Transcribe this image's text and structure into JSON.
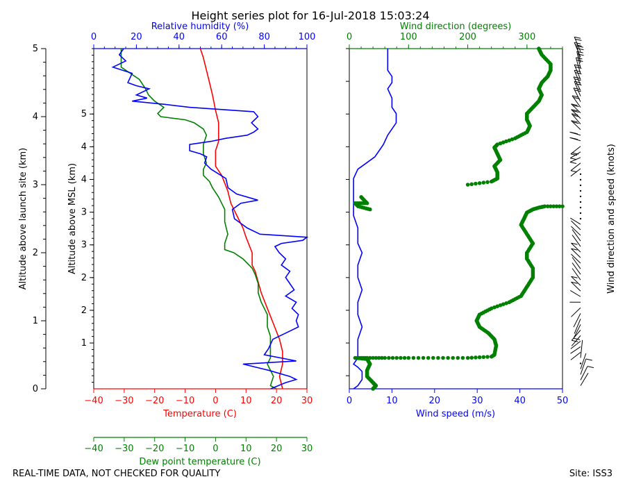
{
  "title": "Height series plot for 16-Jul-2018 15:03:24",
  "footer_left": "REAL-TIME DATA, NOT CHECKED FOR QUALITY",
  "footer_right": "Site: ISS3",
  "colors": {
    "red": "#ff0000",
    "green": "#008000",
    "blue": "#0000ff",
    "black": "#000000"
  },
  "chart_data": [
    {
      "type": "line",
      "panel": "thermo",
      "ylabel_left": "Altitude above launch site (km)",
      "ylabel_inner": "Altitude above MSL (km)",
      "y_left": {
        "range": [
          0,
          5
        ],
        "ticks": [
          "0",
          "1",
          "2",
          "3",
          "4",
          "5"
        ]
      },
      "y_msl": {
        "range": [
          0.3,
          5.5
        ],
        "ticks": [
          "1",
          "2",
          "2",
          "3",
          "3",
          "4",
          "4",
          "5"
        ],
        "tick_values": [
          1,
          1.5,
          2,
          2.5,
          3,
          3.5,
          4,
          4.5
        ]
      },
      "x_top": {
        "label": "Relative humidity (%)",
        "range": [
          0,
          100
        ],
        "ticks": [
          "0",
          "20",
          "40",
          "60",
          "80",
          "100"
        ],
        "color": "#0000ff"
      },
      "x_bottom": {
        "label": "Temperature (C)",
        "range": [
          -40,
          30
        ],
        "ticks": [
          "−40",
          "−30",
          "−20",
          "−10",
          "0",
          "10",
          "20",
          "30"
        ],
        "color": "#ff0000"
      },
      "x_bottom2": {
        "label": "Dew point temperature (C)",
        "range": [
          -40,
          30
        ],
        "ticks": [
          "−40",
          "−30",
          "−20",
          "−10",
          "0",
          "10",
          "20",
          "30"
        ],
        "color": "#008000"
      },
      "series": [
        {
          "name": "Temperature",
          "axis": "temp",
          "color": "#ff0000",
          "points": [
            [
              22,
              0
            ],
            [
              21,
              0.2
            ],
            [
              22,
              0.4
            ],
            [
              22,
              0.6
            ],
            [
              21,
              0.8
            ],
            [
              19,
              1.05
            ],
            [
              17,
              1.3
            ],
            [
              15,
              1.55
            ],
            [
              13,
              1.9
            ],
            [
              12,
              2.0
            ],
            [
              12,
              2.2
            ],
            [
              10,
              2.45
            ],
            [
              9,
              2.6
            ],
            [
              7,
              2.8
            ],
            [
              5,
              3.0
            ],
            [
              4,
              3.2
            ],
            [
              2,
              3.45
            ],
            [
              0,
              3.6
            ],
            [
              0,
              3.85
            ],
            [
              1,
              4.0
            ],
            [
              1,
              4.3
            ],
            [
              0,
              4.5
            ],
            [
              -1,
              4.75
            ],
            [
              -2,
              4.95
            ],
            [
              -3,
              5.15
            ],
            [
              -4,
              5.35
            ],
            [
              -5,
              5.5
            ]
          ]
        },
        {
          "name": "Dew point",
          "axis": "temp",
          "color": "#008000",
          "points": [
            [
              20,
              0
            ],
            [
              18,
              0.05
            ],
            [
              19,
              0.2
            ],
            [
              17,
              0.4
            ],
            [
              18,
              0.5
            ],
            [
              18,
              0.7
            ],
            [
              18,
              0.85
            ],
            [
              17,
              1.0
            ],
            [
              17,
              1.2
            ],
            [
              15,
              1.4
            ],
            [
              14,
              1.55
            ],
            [
              14,
              1.7
            ],
            [
              13,
              1.85
            ],
            [
              12,
              1.95
            ],
            [
              11,
              2.0
            ],
            [
              9,
              2.1
            ],
            [
              6,
              2.2
            ],
            [
              3,
              2.25
            ],
            [
              3,
              2.35
            ],
            [
              4,
              2.5
            ],
            [
              3,
              2.7
            ],
            [
              3,
              2.9
            ],
            [
              2,
              3.0
            ],
            [
              1,
              3.1
            ],
            [
              -1,
              3.25
            ],
            [
              -2,
              3.35
            ],
            [
              -4,
              3.45
            ],
            [
              -4,
              3.55
            ],
            [
              -3,
              3.65
            ],
            [
              -4,
              3.8
            ],
            [
              -4,
              3.95
            ],
            [
              -3,
              4.1
            ],
            [
              -4,
              4.2
            ],
            [
              -7,
              4.3
            ],
            [
              -10,
              4.35
            ],
            [
              -18,
              4.4
            ],
            [
              -19,
              4.45
            ],
            [
              -17,
              4.55
            ],
            [
              -20,
              4.65
            ],
            [
              -22,
              4.75
            ],
            [
              -23,
              4.85
            ],
            [
              -25,
              5.0
            ],
            [
              -28,
              5.1
            ],
            [
              -31,
              5.2
            ],
            [
              -31,
              5.35
            ],
            [
              -31,
              5.5
            ]
          ]
        },
        {
          "name": "Relative humidity",
          "axis": "rh",
          "color": "#0000ff",
          "points": [
            [
              83,
              0
            ],
            [
              90,
              0.1
            ],
            [
              95,
              0.15
            ],
            [
              92,
              0.2
            ],
            [
              82,
              0.3
            ],
            [
              70,
              0.4
            ],
            [
              95,
              0.45
            ],
            [
              80,
              0.55
            ],
            [
              82,
              0.65
            ],
            [
              84,
              0.8
            ],
            [
              90,
              0.9
            ],
            [
              96,
              1.0
            ],
            [
              95,
              1.1
            ],
            [
              96,
              1.2
            ],
            [
              93,
              1.3
            ],
            [
              95,
              1.4
            ],
            [
              90,
              1.5
            ],
            [
              94,
              1.6
            ],
            [
              92,
              1.7
            ],
            [
              90,
              1.8
            ],
            [
              92,
              1.9
            ],
            [
              88,
              2.0
            ],
            [
              90,
              2.1
            ],
            [
              87,
              2.2
            ],
            [
              85,
              2.3
            ],
            [
              88,
              2.35
            ],
            [
              98,
              2.4
            ],
            [
              100,
              2.45
            ],
            [
              78,
              2.5
            ],
            [
              72,
              2.6
            ],
            [
              66,
              2.75
            ],
            [
              65,
              2.9
            ],
            [
              69,
              3.0
            ],
            [
              77,
              3.05
            ],
            [
              67,
              3.15
            ],
            [
              63,
              3.25
            ],
            [
              62,
              3.4
            ],
            [
              55,
              3.55
            ],
            [
              52,
              3.65
            ],
            [
              53,
              3.75
            ],
            [
              50,
              3.8
            ],
            [
              45,
              3.85
            ],
            [
              45,
              3.95
            ],
            [
              55,
              4.0
            ],
            [
              62,
              4.05
            ],
            [
              72,
              4.1
            ],
            [
              75,
              4.15
            ],
            [
              77,
              4.2
            ],
            [
              74,
              4.3
            ],
            [
              77,
              4.4
            ],
            [
              75,
              4.48
            ],
            [
              45,
              4.55
            ],
            [
              33,
              4.6
            ],
            [
              18,
              4.65
            ],
            [
              25,
              4.7
            ],
            [
              20,
              4.75
            ],
            [
              26,
              4.85
            ],
            [
              20,
              4.9
            ],
            [
              16,
              4.95
            ],
            [
              18,
              5.1
            ],
            [
              9,
              5.2
            ],
            [
              15,
              5.3
            ],
            [
              12,
              5.4
            ],
            [
              14,
              5.5
            ]
          ]
        }
      ]
    },
    {
      "type": "scatter",
      "panel": "wind",
      "x_top": {
        "label": "Wind direction (degrees)",
        "range": [
          0,
          360
        ],
        "ticks": [
          "0",
          "100",
          "200",
          "300"
        ],
        "color": "#008000"
      },
      "x_bottom": {
        "label": "Wind speed (m/s)",
        "range": [
          0,
          50
        ],
        "ticks": [
          "0",
          "10",
          "20",
          "30",
          "40",
          "50"
        ],
        "color": "#0000ff"
      },
      "ylabel_right": "Wind direction and speed (knots)",
      "series": [
        {
          "name": "Wind speed",
          "color": "#0000ff",
          "style": "line",
          "points": [
            [
              1,
              0
            ],
            [
              2,
              0.05
            ],
            [
              3,
              0.15
            ],
            [
              3,
              0.28
            ],
            [
              2,
              0.35
            ],
            [
              1,
              0.4
            ],
            [
              2,
              0.5
            ],
            [
              2,
              0.65
            ],
            [
              2,
              0.8
            ],
            [
              3,
              1.0
            ],
            [
              2,
              1.2
            ],
            [
              2,
              1.4
            ],
            [
              3,
              1.6
            ],
            [
              2,
              1.8
            ],
            [
              2,
              2.0
            ],
            [
              3,
              2.2
            ],
            [
              2,
              2.35
            ],
            [
              2,
              2.6
            ],
            [
              1,
              2.8
            ],
            [
              1,
              3.0
            ],
            [
              1,
              3.2
            ],
            [
              1,
              3.4
            ],
            [
              2,
              3.55
            ],
            [
              4,
              3.65
            ],
            [
              6,
              3.75
            ],
            [
              7,
              3.85
            ],
            [
              8,
              3.95
            ],
            [
              9,
              4.1
            ],
            [
              10,
              4.2
            ],
            [
              11,
              4.3
            ],
            [
              11,
              4.45
            ],
            [
              10,
              4.55
            ],
            [
              10,
              4.7
            ],
            [
              9,
              4.85
            ],
            [
              10,
              4.95
            ],
            [
              10,
              5.05
            ],
            [
              9,
              5.15
            ],
            [
              9,
              5.3
            ],
            [
              9,
              5.45
            ],
            [
              9,
              5.5
            ]
          ]
        },
        {
          "name": "Wind direction",
          "color": "#008000",
          "style": "dots",
          "points": [
            [
              40,
              0
            ],
            [
              45,
              0.05
            ],
            [
              40,
              0.1
            ],
            [
              30,
              0.2
            ],
            [
              30,
              0.3
            ],
            [
              35,
              0.4
            ],
            [
              30,
              0.48
            ],
            [
              10,
              0.5
            ],
            [
              30,
              0.5
            ],
            [
              60,
              0.5
            ],
            [
              100,
              0.5
            ],
            [
              150,
              0.5
            ],
            [
              200,
              0.5
            ],
            [
              240,
              0.52
            ],
            [
              245,
              0.55
            ],
            [
              248,
              0.7
            ],
            [
              245,
              0.8
            ],
            [
              235,
              0.9
            ],
            [
              220,
              1.0
            ],
            [
              215,
              1.1
            ],
            [
              220,
              1.2
            ],
            [
              240,
              1.3
            ],
            [
              270,
              1.4
            ],
            [
              290,
              1.5
            ],
            [
              300,
              1.65
            ],
            [
              310,
              1.8
            ],
            [
              310,
              1.95
            ],
            [
              300,
              2.1
            ],
            [
              300,
              2.2
            ],
            [
              310,
              2.35
            ],
            [
              300,
              2.5
            ],
            [
              290,
              2.65
            ],
            [
              295,
              2.75
            ],
            [
              300,
              2.85
            ],
            [
              310,
              2.9
            ],
            [
              320,
              2.93
            ],
            [
              330,
              2.95
            ],
            [
              360,
              2.95
            ],
            [
              35,
              2.9
            ],
            [
              15,
              2.95
            ],
            [
              10,
              3.0
            ],
            [
              30,
              3.0
            ],
            [
              20,
              3.1
            ],
            [
              200,
              3.3
            ],
            [
              240,
              3.35
            ],
            [
              250,
              3.4
            ],
            [
              250,
              3.5
            ],
            [
              245,
              3.6
            ],
            [
              255,
              3.7
            ],
            [
              250,
              3.8
            ],
            [
              245,
              3.9
            ],
            [
              250,
              3.95
            ],
            [
              280,
              4.05
            ],
            [
              300,
              4.15
            ],
            [
              305,
              4.25
            ],
            [
              300,
              4.35
            ],
            [
              300,
              4.45
            ],
            [
              310,
              4.55
            ],
            [
              320,
              4.65
            ],
            [
              325,
              4.75
            ],
            [
              320,
              4.85
            ],
            [
              325,
              4.95
            ],
            [
              335,
              5.05
            ],
            [
              340,
              5.15
            ],
            [
              340,
              5.25
            ],
            [
              325,
              5.4
            ],
            [
              320,
              5.5
            ]
          ]
        }
      ]
    }
  ]
}
